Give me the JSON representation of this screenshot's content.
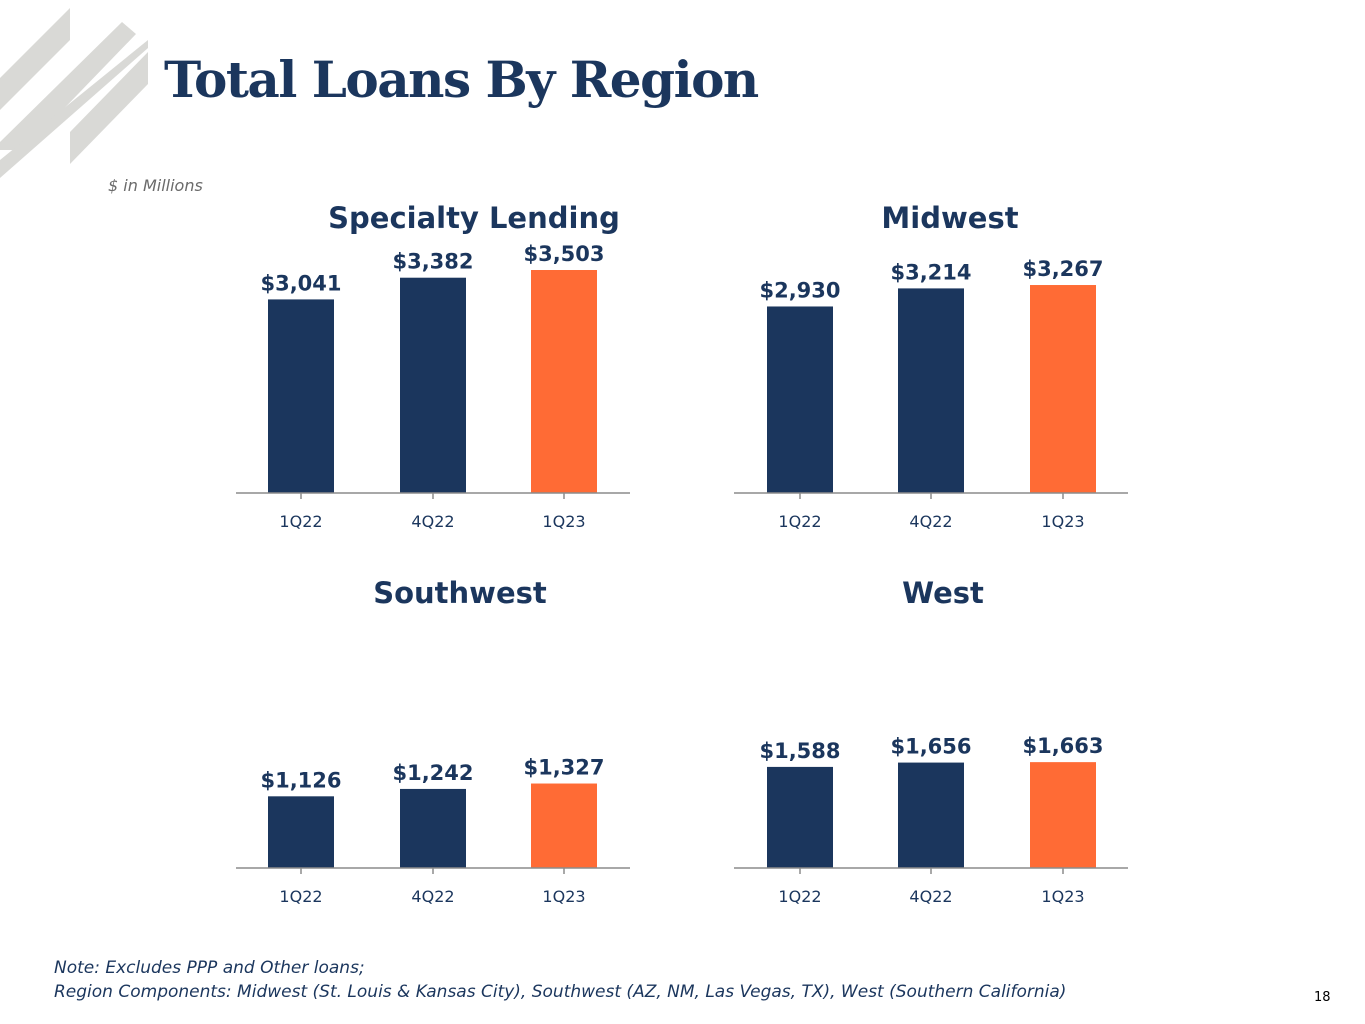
{
  "page": {
    "title": "Total Loans By Region",
    "units": "$ in Millions",
    "note_lines": [
      "Note: Excludes PPP and Other loans;",
      "Region Components: Midwest (St. Louis & Kansas City), Southwest (AZ, NM, Las Vegas, TX), West (Southern California)"
    ],
    "page_number": "18"
  },
  "colors": {
    "navy": "#1b365d",
    "orange": "#ff6b35",
    "axis": "#8c8c8c",
    "logo_gray": "#d9d9d6"
  },
  "chart_data": [
    {
      "type": "bar",
      "title": "Specialty Lending",
      "categories": [
        "1Q22",
        "4Q22",
        "1Q23"
      ],
      "values": [
        3041,
        3382,
        3503
      ],
      "data_labels": [
        "$3,041",
        "$3,382",
        "$3,503"
      ],
      "highlight_index": 2,
      "ylim": [
        0,
        3600
      ],
      "grid": false
    },
    {
      "type": "bar",
      "title": "Midwest",
      "categories": [
        "1Q22",
        "4Q22",
        "1Q23"
      ],
      "values": [
        2930,
        3214,
        3267
      ],
      "data_labels": [
        "$2,930",
        "$3,214",
        "$3,267"
      ],
      "highlight_index": 2,
      "ylim": [
        0,
        3600
      ],
      "grid": false
    },
    {
      "type": "bar",
      "title": "Southwest",
      "categories": [
        "1Q22",
        "4Q22",
        "1Q23"
      ],
      "values": [
        1126,
        1242,
        1327
      ],
      "data_labels": [
        "$1,126",
        "$1,242",
        "$1,327"
      ],
      "highlight_index": 2,
      "ylim": [
        0,
        3600
      ],
      "grid": false
    },
    {
      "type": "bar",
      "title": "West",
      "categories": [
        "1Q22",
        "4Q22",
        "1Q23"
      ],
      "values": [
        1588,
        1656,
        1663
      ],
      "data_labels": [
        "$1,588",
        "$1,656",
        "$1,663"
      ],
      "highlight_index": 2,
      "ylim": [
        0,
        3600
      ],
      "grid": false
    }
  ]
}
